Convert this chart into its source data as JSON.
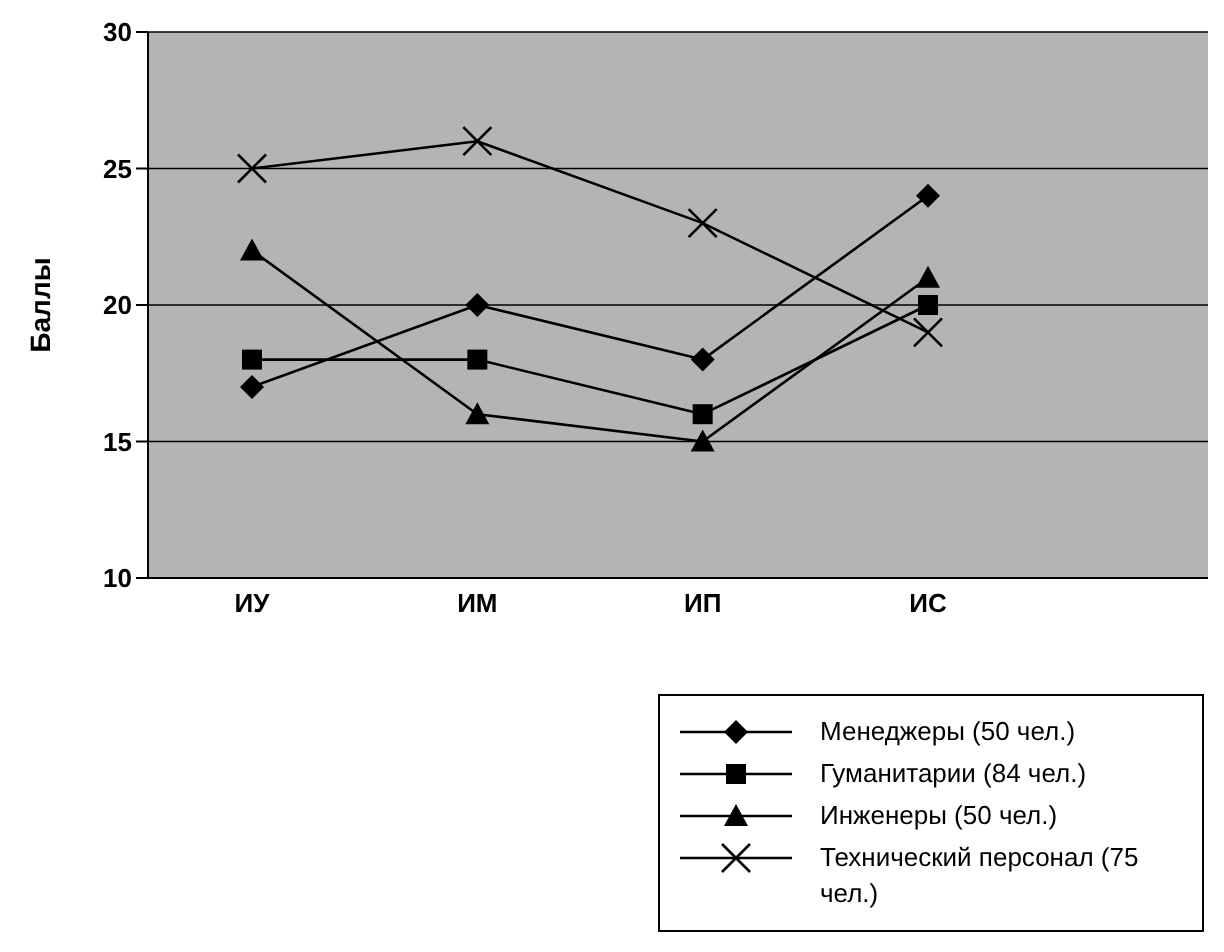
{
  "chart_data": {
    "type": "line",
    "ylabel": "Баллы",
    "categories": [
      "ИУ",
      "ИМ",
      "ИП",
      "ИС"
    ],
    "series": [
      {
        "name": "Менеджеры (50 чел.)",
        "color": "#000000",
        "marker": "diamond",
        "values": [
          17,
          20,
          18,
          24
        ]
      },
      {
        "name": "Гуманитарии (84 чел.)",
        "color": "#000000",
        "marker": "square",
        "values": [
          18,
          18,
          16,
          20
        ]
      },
      {
        "name": "Инженеры (50 чел.)",
        "color": "#000000",
        "marker": "triangle",
        "values": [
          22,
          16,
          15,
          21
        ]
      },
      {
        "name": "Технический персонал (75 чел.)",
        "color": "#000000",
        "marker": "cross",
        "values": [
          25,
          26,
          23,
          19
        ]
      }
    ],
    "ylim": [
      10,
      30
    ],
    "yticks": [
      10,
      15,
      20,
      25,
      30
    ],
    "grid": "y",
    "legend": "bottom right"
  }
}
